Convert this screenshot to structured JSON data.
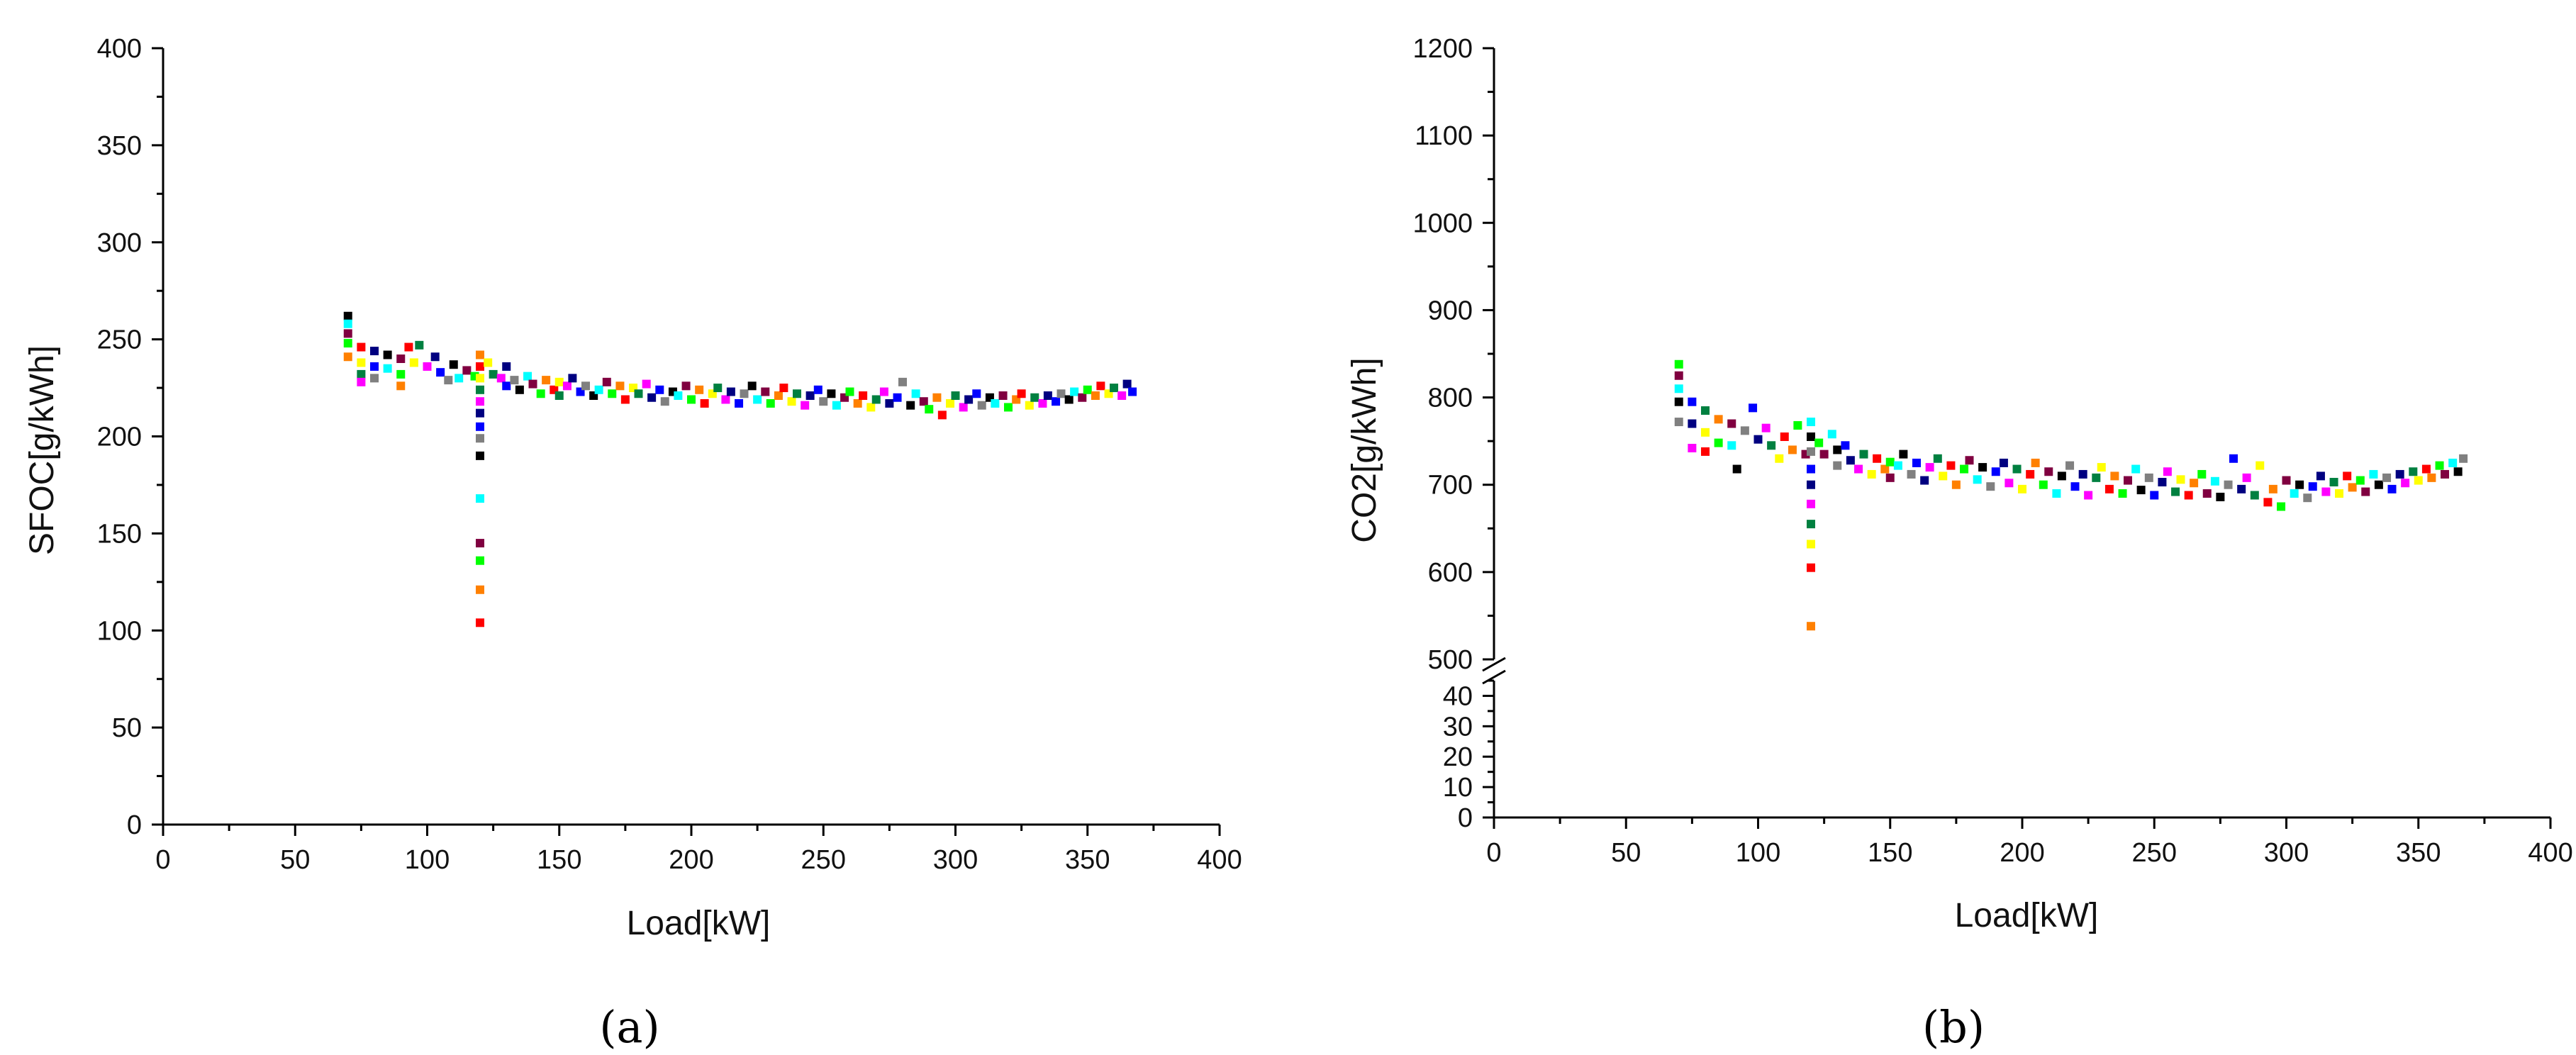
{
  "palette": [
    "#000000",
    "#ff0000",
    "#0000ff",
    "#00ff00",
    "#ff00ff",
    "#00ffff",
    "#ffff00",
    "#808080",
    "#ff8000",
    "#000080",
    "#800040",
    "#008040"
  ],
  "chart_data": [
    {
      "type": "scatter",
      "panel_label": "(a)",
      "xlabel": "Load[kW]",
      "ylabel": "SFOC[g/kWh]",
      "xlim": [
        0,
        400
      ],
      "ylim": [
        0,
        400
      ],
      "x_ticks": [
        0,
        50,
        100,
        150,
        200,
        250,
        300,
        350,
        400
      ],
      "y_ticks": [
        0,
        50,
        100,
        150,
        200,
        250,
        300,
        350,
        400
      ],
      "grid": false,
      "points": [
        [
          70,
          262
        ],
        [
          70,
          258
        ],
        [
          70,
          253
        ],
        [
          70,
          248
        ],
        [
          70,
          241
        ],
        [
          75,
          246
        ],
        [
          75,
          238
        ],
        [
          75,
          232
        ],
        [
          75,
          228
        ],
        [
          80,
          244
        ],
        [
          80,
          236
        ],
        [
          80,
          230
        ],
        [
          85,
          242
        ],
        [
          85,
          235
        ],
        [
          90,
          240
        ],
        [
          90,
          232
        ],
        [
          90,
          226
        ],
        [
          93,
          246
        ],
        [
          95,
          238
        ],
        [
          97,
          247
        ],
        [
          100,
          236
        ],
        [
          103,
          241
        ],
        [
          105,
          233
        ],
        [
          108,
          229
        ],
        [
          110,
          237
        ],
        [
          112,
          230
        ],
        [
          115,
          234
        ],
        [
          118,
          231
        ],
        [
          120,
          242
        ],
        [
          120,
          236
        ],
        [
          120,
          230
        ],
        [
          120,
          224
        ],
        [
          120,
          218
        ],
        [
          120,
          212
        ],
        [
          120,
          205
        ],
        [
          120,
          199
        ],
        [
          120,
          190
        ],
        [
          120,
          168
        ],
        [
          120,
          145
        ],
        [
          120,
          136
        ],
        [
          120,
          121
        ],
        [
          120,
          104
        ],
        [
          123,
          238
        ],
        [
          125,
          232
        ],
        [
          128,
          230
        ],
        [
          130,
          236
        ],
        [
          130,
          226
        ],
        [
          133,
          229
        ],
        [
          135,
          224
        ],
        [
          138,
          231
        ],
        [
          140,
          227
        ],
        [
          143,
          222
        ],
        [
          145,
          229
        ],
        [
          148,
          224
        ],
        [
          150,
          228
        ],
        [
          150,
          221
        ],
        [
          153,
          226
        ],
        [
          155,
          230
        ],
        [
          158,
          223
        ],
        [
          160,
          226
        ],
        [
          163,
          221
        ],
        [
          165,
          224
        ],
        [
          168,
          228
        ],
        [
          170,
          222
        ],
        [
          173,
          226
        ],
        [
          175,
          219
        ],
        [
          178,
          225
        ],
        [
          180,
          222
        ],
        [
          183,
          227
        ],
        [
          185,
          220
        ],
        [
          188,
          224
        ],
        [
          190,
          218
        ],
        [
          193,
          223
        ],
        [
          195,
          221
        ],
        [
          198,
          226
        ],
        [
          200,
          219
        ],
        [
          203,
          224
        ],
        [
          205,
          217
        ],
        [
          208,
          222
        ],
        [
          210,
          225
        ],
        [
          213,
          219
        ],
        [
          215,
          223
        ],
        [
          218,
          217
        ],
        [
          220,
          222
        ],
        [
          223,
          226
        ],
        [
          225,
          219
        ],
        [
          228,
          223
        ],
        [
          230,
          217
        ],
        [
          233,
          221
        ],
        [
          235,
          225
        ],
        [
          238,
          218
        ],
        [
          240,
          222
        ],
        [
          243,
          216
        ],
        [
          245,
          221
        ],
        [
          248,
          224
        ],
        [
          250,
          218
        ],
        [
          253,
          222
        ],
        [
          255,
          216
        ],
        [
          258,
          220
        ],
        [
          260,
          223
        ],
        [
          263,
          217
        ],
        [
          265,
          221
        ],
        [
          268,
          215
        ],
        [
          270,
          219
        ],
        [
          273,
          223
        ],
        [
          275,
          217
        ],
        [
          278,
          220
        ],
        [
          280,
          228
        ],
        [
          283,
          216
        ],
        [
          285,
          222
        ],
        [
          288,
          218
        ],
        [
          290,
          214
        ],
        [
          293,
          220
        ],
        [
          295,
          211
        ],
        [
          298,
          217
        ],
        [
          300,
          221
        ],
        [
          303,
          215
        ],
        [
          305,
          219
        ],
        [
          308,
          222
        ],
        [
          310,
          216
        ],
        [
          313,
          220
        ],
        [
          315,
          217
        ],
        [
          318,
          221
        ],
        [
          320,
          215
        ],
        [
          323,
          219
        ],
        [
          325,
          222
        ],
        [
          328,
          216
        ],
        [
          330,
          220
        ],
        [
          333,
          217
        ],
        [
          335,
          221
        ],
        [
          338,
          218
        ],
        [
          340,
          222
        ],
        [
          343,
          219
        ],
        [
          345,
          223
        ],
        [
          348,
          220
        ],
        [
          350,
          224
        ],
        [
          353,
          221
        ],
        [
          355,
          226
        ],
        [
          358,
          222
        ],
        [
          360,
          225
        ],
        [
          363,
          221
        ],
        [
          365,
          227
        ],
        [
          367,
          223
        ]
      ]
    },
    {
      "type": "scatter",
      "panel_label": "(b)",
      "xlabel": "Load[kW]",
      "ylabel": "CO2[g/kWh]",
      "xlim": [
        0,
        400
      ],
      "ylim_lower": [
        0,
        45
      ],
      "ylim_upper": [
        500,
        1200
      ],
      "axis_break": true,
      "x_ticks": [
        0,
        50,
        100,
        150,
        200,
        250,
        300,
        350,
        400
      ],
      "y_ticks_lower": [
        0,
        10,
        20,
        30,
        40
      ],
      "y_ticks_upper": [
        500,
        600,
        700,
        800,
        900,
        1000,
        1100,
        1200
      ],
      "grid": false,
      "points": [
        [
          70,
          838
        ],
        [
          70,
          825
        ],
        [
          70,
          810
        ],
        [
          70,
          795
        ],
        [
          70,
          772
        ],
        [
          75,
          795
        ],
        [
          75,
          770
        ],
        [
          75,
          742
        ],
        [
          80,
          785
        ],
        [
          80,
          760
        ],
        [
          80,
          738
        ],
        [
          85,
          775
        ],
        [
          85,
          748
        ],
        [
          90,
          770
        ],
        [
          90,
          745
        ],
        [
          92,
          718
        ],
        [
          95,
          762
        ],
        [
          98,
          788
        ],
        [
          100,
          752
        ],
        [
          103,
          765
        ],
        [
          105,
          745
        ],
        [
          108,
          730
        ],
        [
          110,
          755
        ],
        [
          113,
          740
        ],
        [
          115,
          768
        ],
        [
          118,
          735
        ],
        [
          120,
          772
        ],
        [
          120,
          755
        ],
        [
          120,
          738
        ],
        [
          120,
          718
        ],
        [
          120,
          700
        ],
        [
          120,
          678
        ],
        [
          120,
          655
        ],
        [
          120,
          632
        ],
        [
          120,
          605
        ],
        [
          120,
          538
        ],
        [
          123,
          748
        ],
        [
          125,
          735
        ],
        [
          128,
          758
        ],
        [
          130,
          740
        ],
        [
          130,
          722
        ],
        [
          133,
          745
        ],
        [
          135,
          728
        ],
        [
          138,
          718
        ],
        [
          140,
          735
        ],
        [
          143,
          712
        ],
        [
          145,
          730
        ],
        [
          148,
          718
        ],
        [
          150,
          726
        ],
        [
          150,
          708
        ],
        [
          153,
          722
        ],
        [
          155,
          735
        ],
        [
          158,
          712
        ],
        [
          160,
          725
        ],
        [
          163,
          705
        ],
        [
          165,
          720
        ],
        [
          168,
          730
        ],
        [
          170,
          710
        ],
        [
          173,
          722
        ],
        [
          175,
          700
        ],
        [
          178,
          718
        ],
        [
          180,
          728
        ],
        [
          183,
          706
        ],
        [
          185,
          720
        ],
        [
          188,
          698
        ],
        [
          190,
          715
        ],
        [
          193,
          725
        ],
        [
          195,
          702
        ],
        [
          198,
          718
        ],
        [
          200,
          695
        ],
        [
          203,
          712
        ],
        [
          205,
          725
        ],
        [
          208,
          700
        ],
        [
          210,
          715
        ],
        [
          213,
          690
        ],
        [
          215,
          710
        ],
        [
          218,
          722
        ],
        [
          220,
          698
        ],
        [
          223,
          712
        ],
        [
          225,
          688
        ],
        [
          228,
          708
        ],
        [
          230,
          720
        ],
        [
          233,
          695
        ],
        [
          235,
          710
        ],
        [
          238,
          690
        ],
        [
          240,
          705
        ],
        [
          243,
          718
        ],
        [
          245,
          694
        ],
        [
          248,
          708
        ],
        [
          250,
          688
        ],
        [
          253,
          703
        ],
        [
          255,
          715
        ],
        [
          258,
          692
        ],
        [
          260,
          706
        ],
        [
          263,
          688
        ],
        [
          265,
          702
        ],
        [
          268,
          712
        ],
        [
          270,
          690
        ],
        [
          273,
          704
        ],
        [
          275,
          686
        ],
        [
          278,
          700
        ],
        [
          280,
          730
        ],
        [
          283,
          695
        ],
        [
          285,
          708
        ],
        [
          288,
          688
        ],
        [
          290,
          722
        ],
        [
          293,
          680
        ],
        [
          295,
          695
        ],
        [
          298,
          675
        ],
        [
          300,
          705
        ],
        [
          303,
          690
        ],
        [
          305,
          700
        ],
        [
          308,
          685
        ],
        [
          310,
          698
        ],
        [
          313,
          710
        ],
        [
          315,
          692
        ],
        [
          318,
          703
        ],
        [
          320,
          690
        ],
        [
          323,
          710
        ],
        [
          325,
          697
        ],
        [
          328,
          705
        ],
        [
          330,
          692
        ],
        [
          333,
          712
        ],
        [
          335,
          700
        ],
        [
          338,
          708
        ],
        [
          340,
          695
        ],
        [
          343,
          712
        ],
        [
          345,
          702
        ],
        [
          348,
          715
        ],
        [
          350,
          705
        ],
        [
          353,
          718
        ],
        [
          355,
          708
        ],
        [
          358,
          722
        ],
        [
          360,
          712
        ],
        [
          363,
          725
        ],
        [
          365,
          715
        ],
        [
          367,
          730
        ]
      ]
    }
  ]
}
